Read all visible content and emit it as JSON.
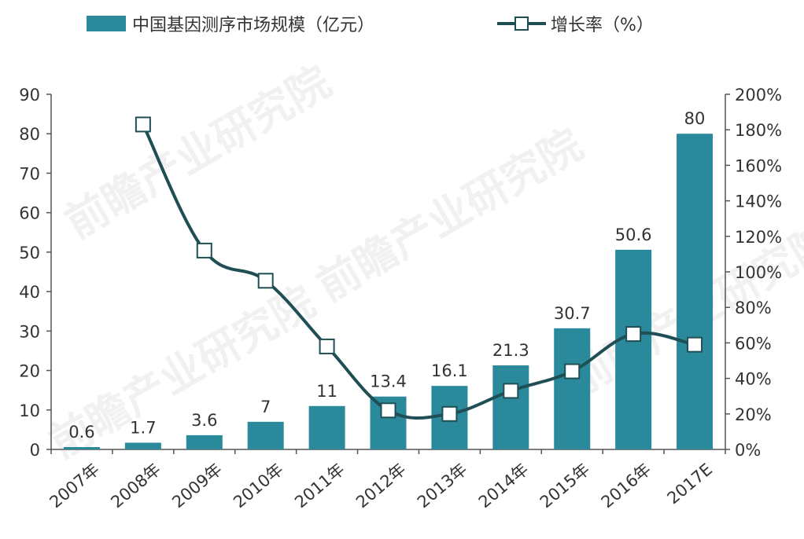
{
  "chart_data": {
    "type": "bar+line",
    "categories": [
      "2007年",
      "2008年",
      "2009年",
      "2010年",
      "2011年",
      "2012年",
      "2013年",
      "2014年",
      "2015年",
      "2016年",
      "2017E"
    ],
    "series": [
      {
        "name": "中国基因测序市场规模（亿元）",
        "type": "bar",
        "axis": "left",
        "values": [
          0.6,
          1.7,
          3.6,
          7,
          11,
          13.4,
          16.1,
          21.3,
          30.7,
          50.6,
          80
        ],
        "labels": [
          "0.6",
          "1.7",
          "3.6",
          "7",
          "11",
          "13.4",
          "16.1",
          "21.3",
          "30.7",
          "50.6",
          "80"
        ]
      },
      {
        "name": "增长率（%）",
        "type": "line",
        "axis": "right",
        "values": [
          null,
          183,
          112,
          95,
          58,
          22,
          20,
          33,
          44,
          65,
          59
        ]
      }
    ],
    "y_left": {
      "min": 0,
      "max": 90,
      "step": 10,
      "ticks": [
        "0",
        "10",
        "20",
        "30",
        "40",
        "50",
        "60",
        "70",
        "80",
        "90"
      ]
    },
    "y_right": {
      "min": 0,
      "max": 200,
      "step": 20,
      "unit": "%",
      "ticks": [
        "0%",
        "20%",
        "40%",
        "60%",
        "80%",
        "100%",
        "120%",
        "140%",
        "160%",
        "180%",
        "200%"
      ]
    },
    "grid": false,
    "legend_position": "top",
    "colors": {
      "bar": "#2a8a9c",
      "line": "#1f4f55",
      "marker_fill": "#ffffff",
      "axis": "#555555",
      "text": "#333333"
    }
  },
  "watermark": "前瞻产业研究院"
}
